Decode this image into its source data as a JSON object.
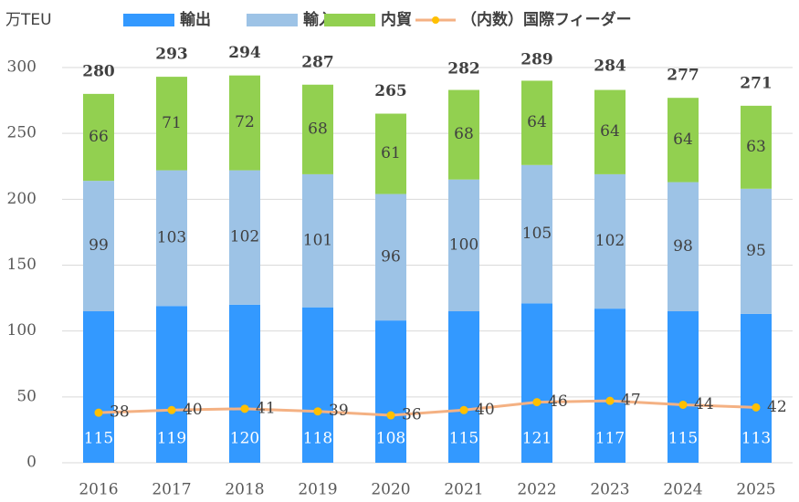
{
  "chart_data": {
    "type": "bar",
    "stacked": true,
    "unit_label": "万TEU",
    "categories": [
      "2016",
      "2017",
      "2018",
      "2019",
      "2020",
      "2021",
      "2022",
      "2023",
      "2024",
      "2025"
    ],
    "series": [
      {
        "name": "輸出",
        "color": "#3399ff",
        "values": [
          115,
          119,
          120,
          118,
          108,
          115,
          121,
          117,
          115,
          113
        ]
      },
      {
        "name": "輸入",
        "color": "#9dc3e6",
        "values": [
          99,
          103,
          102,
          101,
          96,
          100,
          105,
          102,
          98,
          95
        ]
      },
      {
        "name": "内貿",
        "color": "#92d050",
        "values": [
          66,
          71,
          72,
          68,
          61,
          68,
          64,
          64,
          64,
          63
        ]
      },
      {
        "name": "（内数）国際フィーダー",
        "type": "line",
        "color": "#f4b183",
        "marker_color": "#ffc000",
        "values": [
          38,
          40,
          41,
          39,
          36,
          40,
          46,
          47,
          44,
          42
        ]
      }
    ],
    "totals": [
      280,
      293,
      294,
      287,
      265,
      282,
      289,
      284,
      277,
      271
    ],
    "ylim": [
      0,
      300
    ],
    "yticks": [
      0,
      50,
      100,
      150,
      200,
      250,
      300
    ],
    "grid": true
  }
}
